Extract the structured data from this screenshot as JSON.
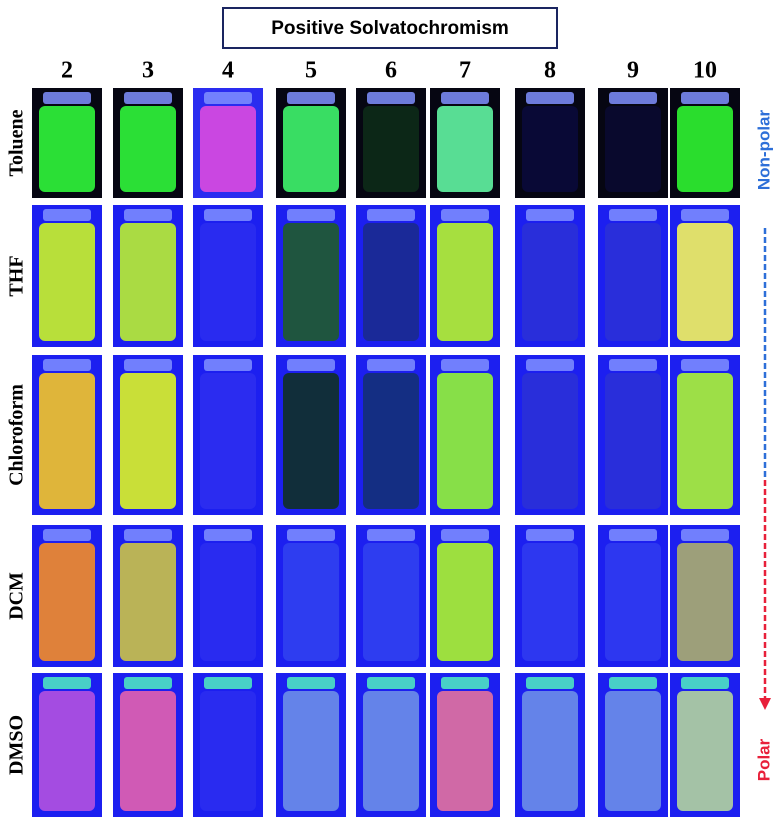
{
  "title": "Positive Solvatochromism",
  "columns": [
    "2",
    "3",
    "4",
    "5",
    "6",
    "7",
    "8",
    "9",
    "10"
  ],
  "rows": [
    "Toluene",
    "THF",
    "Chloroform",
    "DCM",
    "DMSO"
  ],
  "polarity": {
    "top": "Non-polar",
    "bottom": "Polar"
  }
}
